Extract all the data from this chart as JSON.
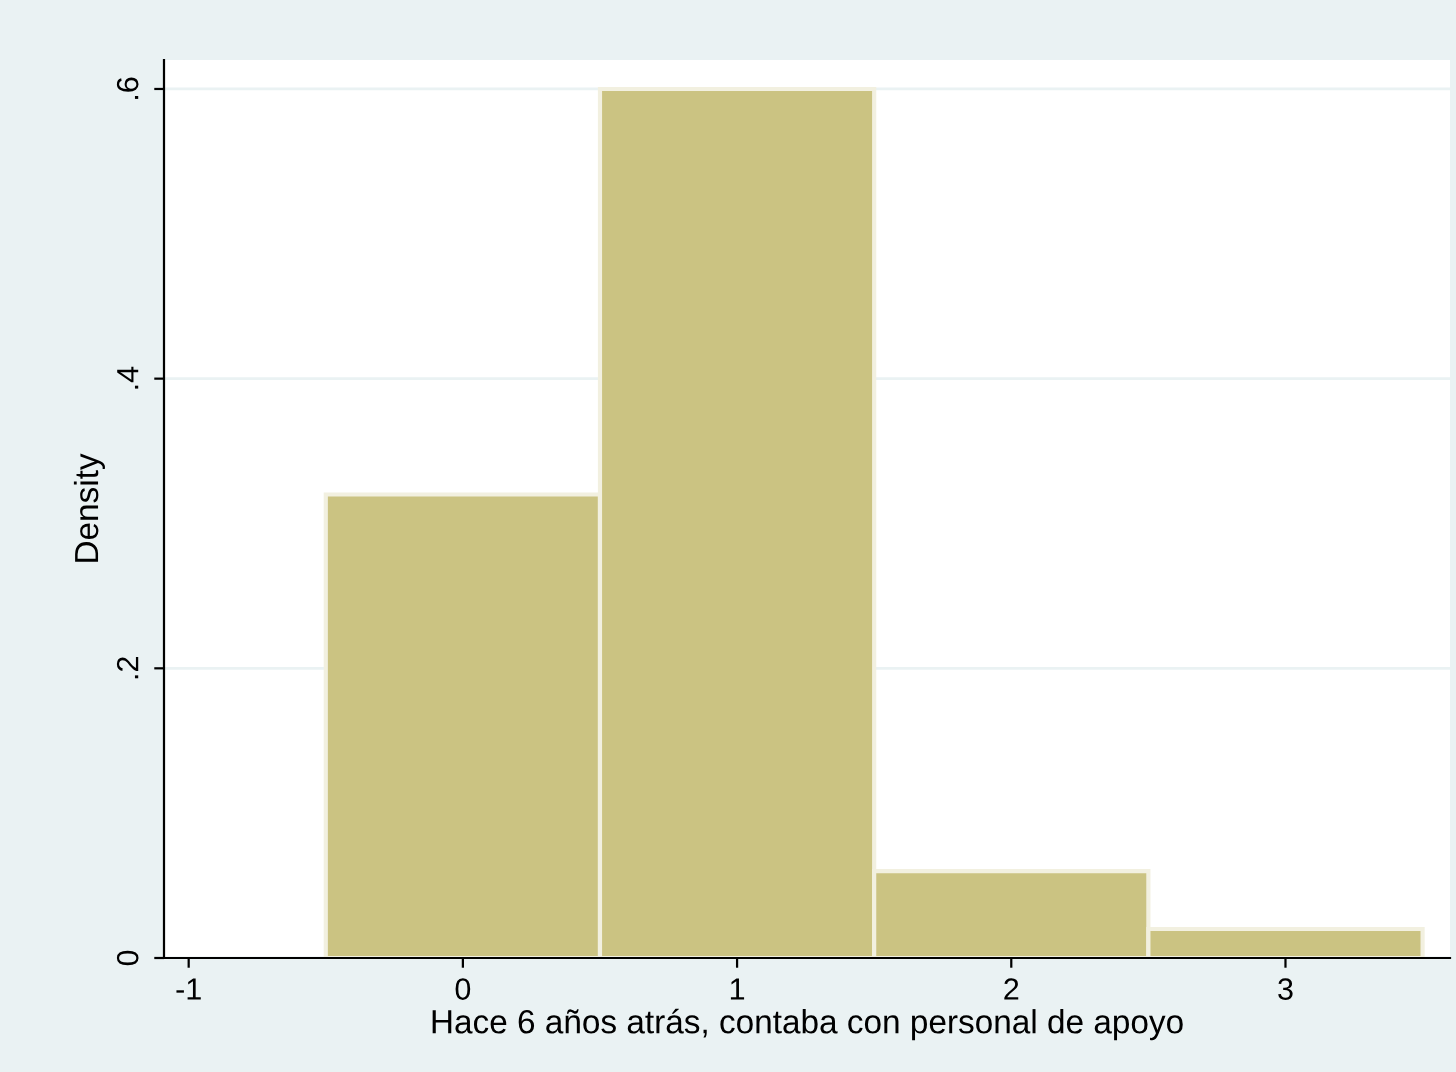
{
  "chart_data": {
    "type": "histogram",
    "xlabel": "Hace 6 años atrás, contaba con personal de apoyo",
    "ylabel": "Density",
    "bins": [
      -0.5,
      0.5,
      1.5,
      2.5,
      3.5
    ],
    "values": [
      0.32,
      0.6,
      0.06,
      0.02
    ],
    "color": "#cbc382",
    "xlim": [
      -1.09,
      3.6
    ],
    "ylim": [
      0,
      0.62
    ],
    "xticks": [
      -1,
      0,
      1,
      2,
      3
    ],
    "yticks": [
      0,
      {
        "value": 0.2,
        "label": ".2"
      },
      {
        "value": 0.4,
        "label": ".4"
      },
      {
        "value": 0.6,
        "label": ".6"
      }
    ],
    "grid": "y"
  }
}
